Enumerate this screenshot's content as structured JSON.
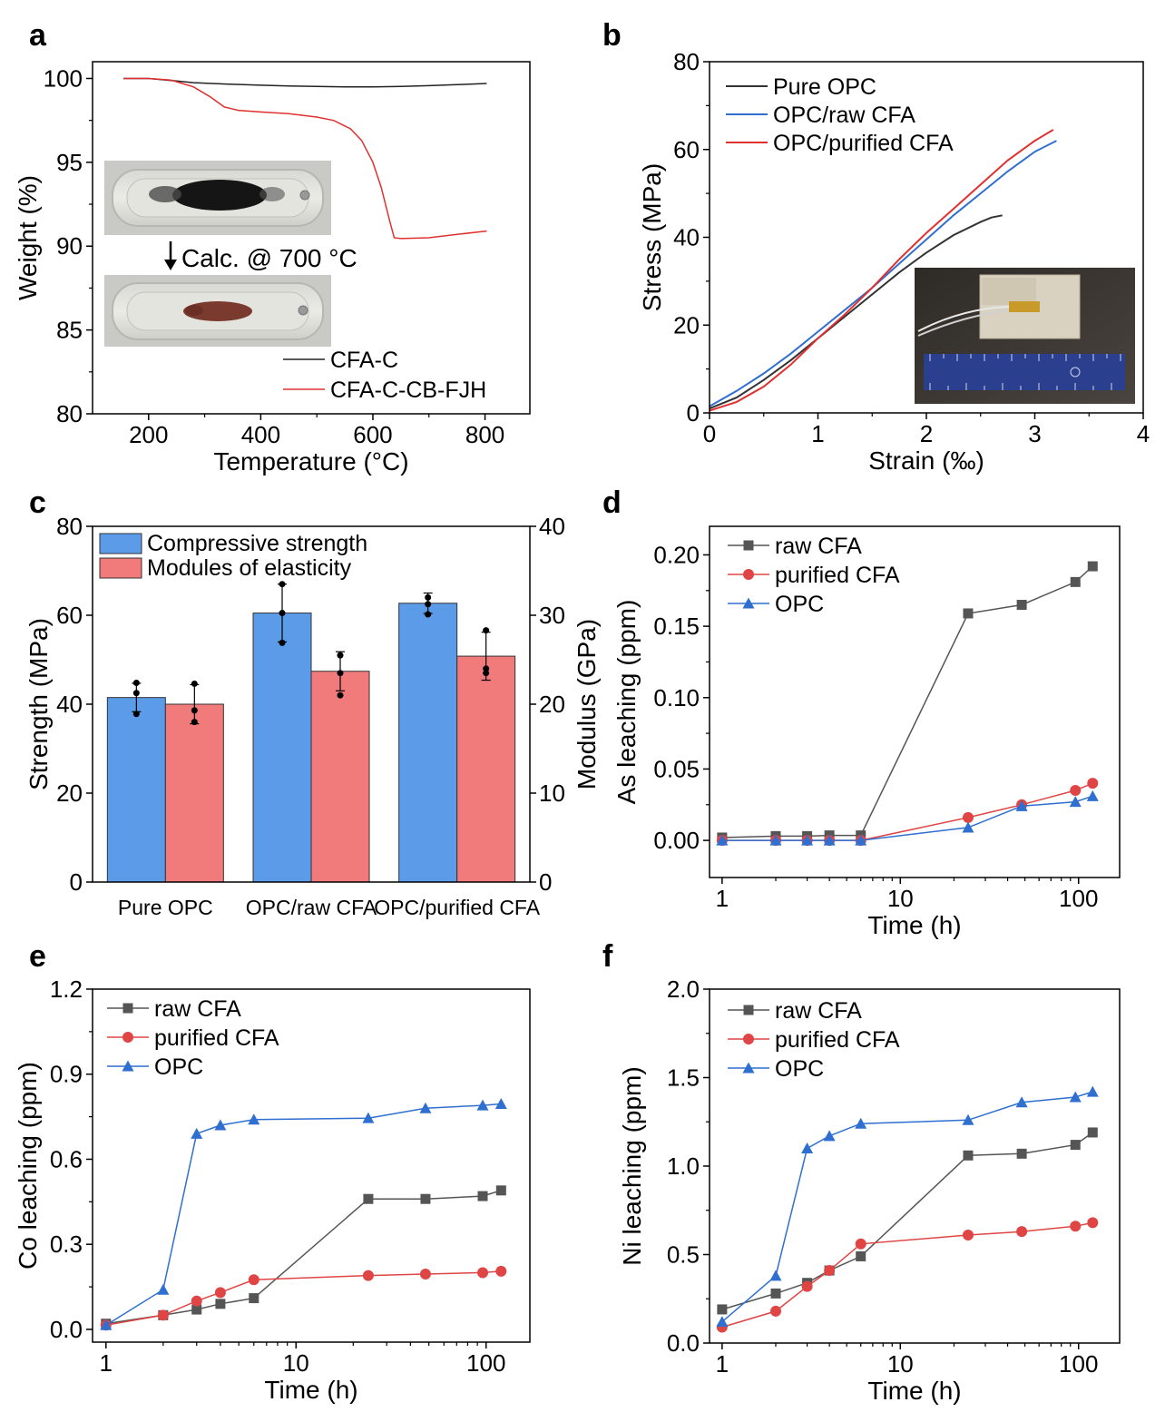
{
  "chart_data": [
    {
      "panel": "a",
      "type": "line",
      "title": "",
      "xlabel": "Temperature (°C)",
      "ylabel": "Weight (%)",
      "xlim": [
        100,
        880
      ],
      "ylim": [
        80,
        101
      ],
      "xticks": [
        200,
        400,
        600,
        800
      ],
      "yticks": [
        80,
        85,
        90,
        95,
        100
      ],
      "legend": "bottom-right",
      "inset_caption": "Calc. @ 700 °C",
      "series": [
        {
          "name": "CFA-C",
          "color": "#222222",
          "x": [
            155,
            200,
            250,
            280,
            350,
            400,
            450,
            500,
            550,
            600,
            650,
            700,
            750,
            803
          ],
          "y": [
            100.0,
            100.0,
            99.85,
            99.75,
            99.65,
            99.6,
            99.55,
            99.52,
            99.5,
            99.5,
            99.52,
            99.57,
            99.63,
            99.7
          ]
        },
        {
          "name": "CFA-C-CB-FJH",
          "color": "#e03030",
          "x": [
            155,
            200,
            240,
            280,
            310,
            335,
            360,
            400,
            450,
            500,
            530,
            560,
            580,
            600,
            615,
            630,
            638,
            650,
            700,
            750,
            803
          ],
          "y": [
            100.0,
            100.0,
            99.9,
            99.5,
            98.9,
            98.3,
            98.1,
            98.0,
            97.9,
            97.7,
            97.5,
            97.0,
            96.3,
            95.0,
            93.5,
            91.5,
            90.5,
            90.45,
            90.5,
            90.7,
            90.9
          ]
        }
      ]
    },
    {
      "panel": "b",
      "type": "line",
      "title": "",
      "xlabel": "Strain (‰)",
      "ylabel": "Stress (MPa)",
      "xlim": [
        0,
        4
      ],
      "ylim": [
        0,
        80
      ],
      "xticks": [
        0,
        1,
        2,
        3,
        4
      ],
      "yticks": [
        0,
        20,
        40,
        60,
        80
      ],
      "legend": "top-left",
      "series": [
        {
          "name": "Pure OPC",
          "color": "#333333",
          "x": [
            0,
            0.25,
            0.5,
            0.75,
            1.0,
            1.25,
            1.5,
            1.75,
            2.0,
            2.25,
            2.5,
            2.6,
            2.7
          ],
          "y": [
            1,
            3.5,
            7.5,
            12,
            17,
            22,
            27,
            32,
            36.5,
            40.5,
            43.5,
            44.5,
            45
          ]
        },
        {
          "name": "OPC/raw CFA",
          "color": "#2f6fd0",
          "x": [
            0,
            0.25,
            0.5,
            0.75,
            1.0,
            1.25,
            1.5,
            1.75,
            2.0,
            2.25,
            2.5,
            2.75,
            3.0,
            3.2
          ],
          "y": [
            1.5,
            5,
            9,
            13.5,
            18.5,
            23.5,
            28.5,
            34,
            39.5,
            45,
            50,
            55,
            59.5,
            62
          ]
        },
        {
          "name": "OPC/purified CFA",
          "color": "#e03030",
          "x": [
            0,
            0.25,
            0.5,
            0.75,
            1.0,
            1.25,
            1.5,
            1.75,
            2.0,
            2.25,
            2.5,
            2.75,
            3.0,
            3.17
          ],
          "y": [
            0.5,
            2.5,
            6,
            11,
            17,
            22.5,
            28.5,
            35,
            41,
            46.5,
            52,
            57.5,
            62,
            64.5
          ]
        }
      ]
    },
    {
      "panel": "c",
      "type": "bar",
      "title": "",
      "xlabel": "",
      "ylabel": "Strength (MPa)",
      "y2label": "Modulus (GPa)",
      "ylim": [
        0,
        80
      ],
      "y2lim": [
        0,
        40
      ],
      "yticks": [
        0,
        20,
        40,
        60,
        80
      ],
      "y2ticks": [
        0,
        10,
        20,
        30,
        40
      ],
      "legend": "top-left",
      "categories": [
        "Pure OPC",
        "OPC/raw CFA",
        "OPC/purified CFA"
      ],
      "series": [
        {
          "name": "Compressive strength",
          "color": "#5b9be8",
          "axis": "left",
          "values": [
            41.5,
            60.5,
            62.7
          ],
          "errors": [
            3.2,
            6.5,
            2.3
          ],
          "points": [
            [
              37.8,
              42.5,
              44.8
            ],
            [
              53.8,
              60.5,
              67.0
            ],
            [
              60.2,
              62.5,
              64.0
            ]
          ]
        },
        {
          "name": "Modules of elasticity",
          "color": "#f17b7b",
          "axis": "right",
          "values": [
            20.0,
            23.7,
            25.4
          ],
          "errors": [
            2.2,
            2.2,
            2.7
          ],
          "points": [
            [
              18.0,
              19.3,
              22.3
            ],
            [
              21.0,
              23.5,
              25.5
            ],
            [
              23.5,
              24.0,
              28.3
            ]
          ]
        }
      ]
    },
    {
      "panel": "d",
      "type": "line",
      "title": "",
      "xlabel": "Time (h)",
      "ylabel": "As leaching (ppm)",
      "xscale": "log",
      "xlim": [
        0.85,
        170
      ],
      "ylim": [
        -0.026,
        0.22
      ],
      "xticks": [
        1,
        10,
        100
      ],
      "yticks": [
        0.0,
        0.05,
        0.1,
        0.15,
        0.2
      ],
      "ytick_labels": [
        "0.00",
        "0.05",
        "0.10",
        "0.15",
        "0.20"
      ],
      "legend": "top-left",
      "x": [
        1,
        2,
        3,
        4,
        6,
        24,
        48,
        96,
        120
      ],
      "series": [
        {
          "name": "raw CFA",
          "color": "#555555",
          "marker": "square",
          "values": [
            0.002,
            0.003,
            0.003,
            0.0035,
            0.0035,
            0.159,
            0.165,
            0.181,
            0.192
          ]
        },
        {
          "name": "purified CFA",
          "color": "#e04545",
          "marker": "circle",
          "values": [
            0.0,
            0.0,
            0.0,
            0.0,
            0.0,
            0.016,
            0.025,
            0.035,
            0.04
          ]
        },
        {
          "name": "OPC",
          "color": "#2f6fd0",
          "marker": "triangle",
          "values": [
            0.0,
            0.0,
            0.0,
            0.0,
            0.0,
            0.009,
            0.024,
            0.027,
            0.031
          ]
        }
      ]
    },
    {
      "panel": "e",
      "type": "line",
      "title": "",
      "xlabel": "Time (h)",
      "ylabel": "Co leaching (ppm)",
      "xscale": "log",
      "xlim": [
        0.85,
        170
      ],
      "ylim": [
        -0.045,
        1.2
      ],
      "xticks": [
        1,
        10,
        100
      ],
      "yticks": [
        0.0,
        0.3,
        0.6,
        0.9,
        1.2
      ],
      "ytick_labels": [
        "0.0",
        "0.3",
        "0.6",
        "0.9",
        "1.2"
      ],
      "legend": "top-left",
      "x": [
        1,
        2,
        3,
        4,
        6,
        24,
        48,
        96,
        120
      ],
      "series": [
        {
          "name": "raw CFA",
          "color": "#555555",
          "marker": "square",
          "values": [
            0.02,
            0.05,
            0.07,
            0.09,
            0.11,
            0.46,
            0.46,
            0.47,
            0.49
          ]
        },
        {
          "name": "purified CFA",
          "color": "#e04545",
          "marker": "circle",
          "values": [
            0.015,
            0.05,
            0.1,
            0.13,
            0.175,
            0.19,
            0.195,
            0.2,
            0.205
          ]
        },
        {
          "name": "OPC",
          "color": "#2f6fd0",
          "marker": "triangle",
          "values": [
            0.015,
            0.14,
            0.69,
            0.72,
            0.74,
            0.745,
            0.78,
            0.79,
            0.795
          ]
        }
      ]
    },
    {
      "panel": "f",
      "type": "line",
      "title": "",
      "xlabel": "Time (h)",
      "ylabel": "Ni leaching (ppm)",
      "xscale": "log",
      "xlim": [
        0.85,
        170
      ],
      "ylim": [
        0.0,
        2.0
      ],
      "xticks": [
        1,
        10,
        100
      ],
      "yticks": [
        0.0,
        0.5,
        1.0,
        1.5,
        2.0
      ],
      "ytick_labels": [
        "0.0",
        "0.5",
        "1.0",
        "1.5",
        "2.0"
      ],
      "legend": "top-left",
      "x": [
        1,
        2,
        3,
        4,
        6,
        24,
        48,
        96,
        120
      ],
      "series": [
        {
          "name": "raw CFA",
          "color": "#555555",
          "marker": "square",
          "values": [
            0.19,
            0.28,
            0.34,
            0.41,
            0.49,
            1.06,
            1.07,
            1.12,
            1.19
          ]
        },
        {
          "name": "purified CFA",
          "color": "#e04545",
          "marker": "circle",
          "values": [
            0.09,
            0.18,
            0.32,
            0.41,
            0.56,
            0.61,
            0.63,
            0.66,
            0.68
          ]
        },
        {
          "name": "OPC",
          "color": "#2f6fd0",
          "marker": "triangle",
          "values": [
            0.12,
            0.38,
            1.1,
            1.17,
            1.24,
            1.26,
            1.36,
            1.39,
            1.42
          ]
        }
      ]
    }
  ]
}
